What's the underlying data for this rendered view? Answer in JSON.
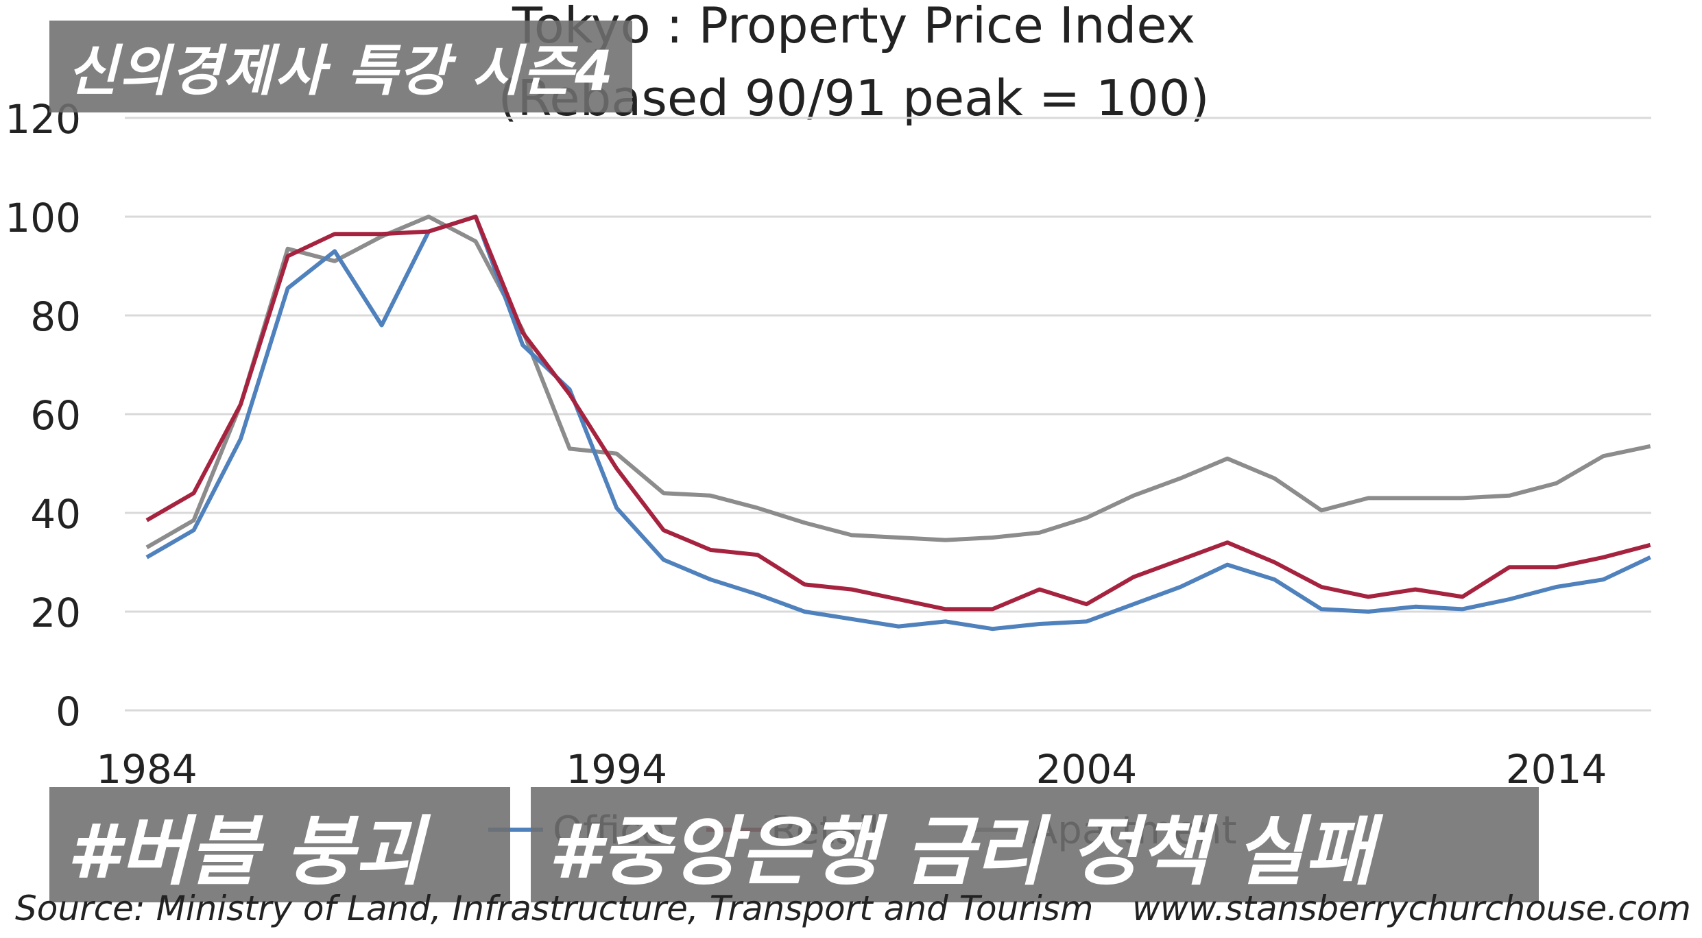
{
  "chart_data": {
    "type": "line",
    "title": "Tokyo : Property Price Index",
    "subtitle": "(Rebased 90/91 peak = 100)",
    "xlabel": "",
    "ylabel": "",
    "ylim": [
      0,
      120
    ],
    "xlim": [
      1984,
      2016
    ],
    "yticks": [
      0,
      20,
      40,
      60,
      80,
      100,
      120
    ],
    "xticks": [
      1984,
      1994,
      2004,
      2014
    ],
    "grid": true,
    "legend_position": "bottom",
    "x": [
      1984,
      1985,
      1986,
      1987,
      1988,
      1989,
      1990,
      1991,
      1992,
      1993,
      1994,
      1995,
      1996,
      1997,
      1998,
      1999,
      2000,
      2001,
      2002,
      2003,
      2004,
      2005,
      2006,
      2007,
      2008,
      2009,
      2010,
      2011,
      2012,
      2013,
      2014,
      2015,
      2016
    ],
    "series": [
      {
        "name": "Office",
        "color": "#4f81bd",
        "values": [
          31,
          36.5,
          55,
          85.5,
          93,
          78,
          97,
          100,
          74,
          65,
          41,
          30.5,
          26.5,
          23.5,
          20,
          18.5,
          17,
          18,
          16.5,
          17.5,
          18,
          21.5,
          25,
          29.5,
          26.5,
          20.5,
          20,
          21,
          20.5,
          22.5,
          25,
          26.5,
          31
        ]
      },
      {
        "name": "Retail",
        "color": "#a6233f",
        "values": [
          38.5,
          44,
          62,
          92,
          96.5,
          96.5,
          97,
          100,
          76.5,
          64,
          49,
          36.5,
          32.5,
          31.5,
          25.5,
          24.5,
          22.5,
          20.5,
          20.5,
          24.5,
          21.5,
          27,
          30.5,
          34,
          30,
          25,
          23,
          24.5,
          23,
          29,
          29,
          31,
          33.5
        ]
      },
      {
        "name": "Apartment",
        "color": "#8c8c8c",
        "values": [
          33,
          38.5,
          62,
          93.5,
          91,
          96,
          100,
          95,
          77,
          53,
          52,
          44,
          43.5,
          41,
          38,
          35.5,
          35,
          34.5,
          35,
          36,
          39,
          43.5,
          47,
          51,
          47,
          40.5,
          43,
          43,
          43,
          43.5,
          46,
          51.5,
          53.5
        ]
      }
    ]
  },
  "overlays": {
    "top": "신의경제사 특강 시즌4",
    "bottom_left": "#버블 붕괴",
    "bottom_right": "#중앙은행 금리 정책 실패"
  },
  "footer": {
    "source": "Source: Ministry of Land, Infrastructure, Transport and Tourism",
    "website": "www.stansberrychurchouse.com"
  }
}
